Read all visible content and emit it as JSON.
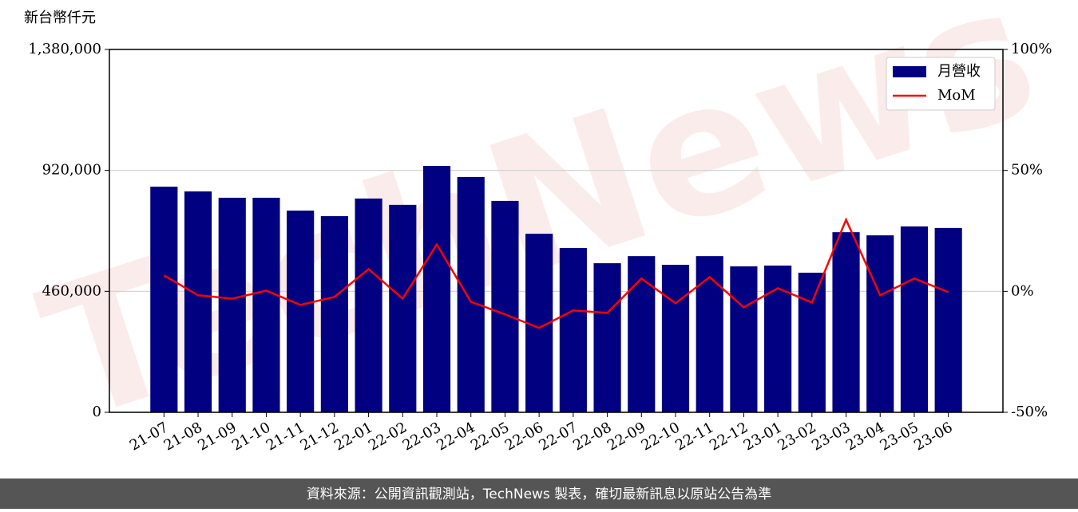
{
  "chart_data": {
    "type": "bar",
    "watermark": "TechNews",
    "ylabel": "新台幣仟元",
    "categories": [
      "21-07",
      "21-08",
      "21-09",
      "21-10",
      "21-11",
      "21-12",
      "22-01",
      "22-02",
      "22-03",
      "22-04",
      "22-05",
      "22-06",
      "22-07",
      "22-08",
      "22-09",
      "22-10",
      "22-11",
      "22-12",
      "23-01",
      "23-02",
      "23-03",
      "23-04",
      "23-05",
      "23-06"
    ],
    "series": [
      {
        "name": "月營收",
        "color": "#000080",
        "type": "bar",
        "values": [
          858000,
          840000,
          816000,
          816000,
          767000,
          746000,
          813000,
          789000,
          937000,
          895000,
          804000,
          679000,
          625000,
          567000,
          594000,
          561000,
          594000,
          555000,
          558000,
          531000,
          685000,
          673000,
          707000,
          701000
        ]
      },
      {
        "name": "MoM",
        "color": "#ff0000",
        "type": "line",
        "axis": "y2",
        "values": [
          6.6,
          -1.6,
          -3.0,
          0.3,
          -5.6,
          -2.3,
          9.2,
          -3.0,
          19.4,
          -4.3,
          -9.5,
          -15.1,
          -7.9,
          -8.9,
          5.3,
          -4.9,
          5.9,
          -6.6,
          1.3,
          -4.6,
          29.6,
          -1.6,
          5.3,
          -0.3
        ]
      }
    ],
    "ylim": [
      0,
      1380000
    ],
    "yticks": [
      0,
      {
        "value": 460000,
        "label": "460,000"
      },
      {
        "value": 920000,
        "label": "920,000"
      },
      {
        "value": 1380000,
        "label": "1,380,000"
      }
    ],
    "y2lim": [
      -50,
      100
    ],
    "y2ticks": [
      {
        "value": -50,
        "label": "-50%"
      },
      {
        "value": 0,
        "label": "0%"
      },
      {
        "value": 50,
        "label": "50%"
      },
      {
        "value": 100,
        "label": "100%"
      }
    ],
    "grid": true,
    "legend": "upper right"
  },
  "footer": "資料來源：公開資訊觀測站，TechNews 製表，確切最新訊息以原站公告為準"
}
